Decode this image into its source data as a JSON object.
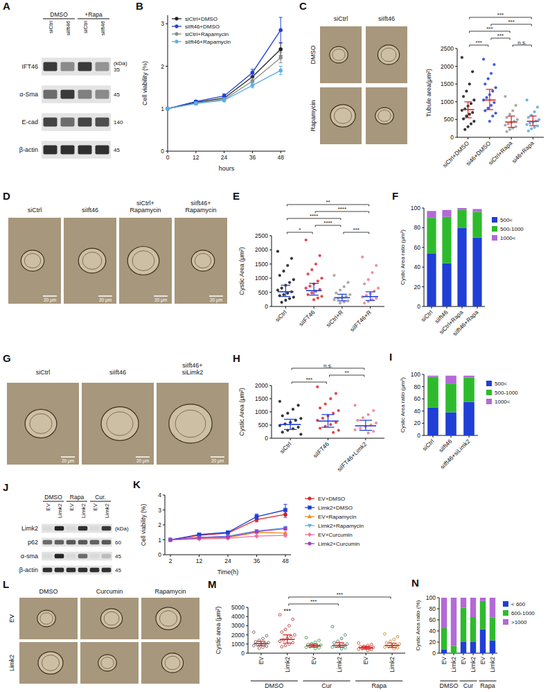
{
  "blots": [
    {
      "panel": "A",
      "groups": [
        {
          "label": "DMSO",
          "span": 2
        },
        {
          "label": "+Rapa",
          "span": 2
        }
      ],
      "lanes": [
        "siCtrl",
        "siIft46",
        "siCtrl",
        "siIft46"
      ],
      "unit_label": "(kDa)",
      "rows": [
        {
          "label": "IFT46",
          "kda": 35,
          "intensity": [
            0.85,
            0.45,
            0.85,
            0.4
          ]
        },
        {
          "label": "α-Sma",
          "kda": 45,
          "intensity": [
            0.6,
            0.85,
            0.5,
            0.45
          ]
        },
        {
          "label": "E-cad",
          "kda": 140,
          "intensity": [
            0.8,
            0.6,
            0.8,
            0.75
          ]
        },
        {
          "label": "β-actin",
          "kda": 45,
          "intensity": [
            0.9,
            0.9,
            0.9,
            0.9
          ]
        }
      ]
    },
    {
      "panel": "J",
      "groups": [
        {
          "label": "DMSO",
          "span": 2
        },
        {
          "label": "Rapa",
          "span": 2
        },
        {
          "label": "Cur.",
          "span": 2
        }
      ],
      "lanes": [
        "EV",
        "Limk2",
        "EV",
        "Limk2",
        "EV",
        "Limk2"
      ],
      "unit_label": "(kDa)",
      "rows": [
        {
          "label": "Limk2",
          "kda": null,
          "intensity": [
            0.05,
            0.95,
            0.05,
            0.9,
            0.05,
            0.85
          ]
        },
        {
          "label": "p62",
          "kda": 60,
          "intensity": [
            0.6,
            0.65,
            0.7,
            0.7,
            0.65,
            0.7
          ]
        },
        {
          "label": "α-sma",
          "kda": 45,
          "intensity": [
            0.05,
            0.95,
            0.05,
            0.6,
            0.05,
            0.2
          ]
        },
        {
          "label": "β-actin",
          "kda": 45,
          "intensity": [
            0.9,
            0.9,
            0.9,
            0.9,
            0.9,
            0.9
          ]
        }
      ]
    }
  ],
  "images": [
    {
      "panel": "C",
      "columns": [
        "siCtrl",
        "siIft46"
      ],
      "rows": [
        "DMSO",
        "Rapamycin"
      ]
    },
    {
      "panel": "D",
      "columns": [
        "siCtrl",
        "siIft46",
        "siCtrl+Rapamycin",
        "siIft46+Rapamycin"
      ],
      "scale_bar": "20 μm"
    },
    {
      "panel": "G",
      "columns": [
        "siCtrl",
        "siIft46",
        "siIft46+siLimk2"
      ],
      "scale_bar": "20 μm"
    },
    {
      "panel": "L",
      "columns": [
        "DMSO",
        "Curcumin",
        "Rapamycin"
      ],
      "rows": [
        "EV",
        "Limk2"
      ]
    }
  ],
  "chart_data": [
    {
      "panel": "B",
      "type": "line",
      "x": [
        0,
        12,
        24,
        36,
        48
      ],
      "xlim": [
        0,
        50
      ],
      "xticks": [
        0,
        12,
        24,
        36,
        48
      ],
      "x_label": "hours",
      "y_label": "Cell viability (%)",
      "ylim": [
        0,
        3.2
      ],
      "yticks": [
        0,
        1,
        2,
        3
      ],
      "legend": "top-left",
      "series": [
        {
          "name": "siCtrl+DMSO",
          "color": "#222222",
          "marker": "circle",
          "values": [
            1,
            1.15,
            1.25,
            1.75,
            2.4
          ],
          "errors": [
            0,
            0.03,
            0.04,
            0.08,
            0.15
          ]
        },
        {
          "name": "siIft46+DMSO",
          "color": "#1f3fd6",
          "marker": "circle",
          "values": [
            1,
            1.17,
            1.3,
            1.85,
            2.85
          ],
          "errors": [
            0,
            0.03,
            0.05,
            0.08,
            0.3
          ]
        },
        {
          "name": "siCtrl+Rapamycin",
          "color": "#8c8c8c",
          "marker": "circle",
          "values": [
            1,
            1.13,
            1.22,
            1.65,
            2.2
          ],
          "errors": [
            0,
            0.03,
            0.04,
            0.07,
            0.12
          ]
        },
        {
          "name": "siIft46+Rapamycin",
          "color": "#5aaee6",
          "marker": "circle",
          "values": [
            1,
            1.12,
            1.2,
            1.55,
            1.9
          ],
          "errors": [
            0,
            0.03,
            0.04,
            0.06,
            0.1
          ]
        }
      ]
    },
    {
      "type": "dot",
      "categories": [
        "siCtrl+DMSO",
        "si46+DMSO",
        "siCtrl+Rapa",
        "si46+Rapa"
      ],
      "colors": [
        "#111111",
        "#1f3fd6",
        "#9a9a9a",
        "#5aa7e0"
      ],
      "marker": "circle",
      "y_label": "Tubule area(μm²)",
      "ylim": [
        0,
        2500
      ],
      "yticks": [
        0,
        500,
        1000,
        1500,
        2000,
        2500
      ],
      "points": [
        [
          2250,
          1850,
          1500,
          1300,
          1150,
          1050,
          950,
          880,
          800,
          760,
          700,
          650,
          600,
          520,
          450,
          380,
          300,
          220
        ],
        [
          2200,
          2050,
          1800,
          1650,
          1500,
          1400,
          1300,
          1200,
          1120,
          1050,
          980,
          900,
          820,
          750,
          680,
          600,
          450
        ],
        [
          1150,
          900,
          750,
          650,
          560,
          500,
          450,
          420,
          380,
          340,
          300,
          260,
          220,
          160
        ],
        [
          1050,
          850,
          720,
          620,
          560,
          500,
          460,
          430,
          400,
          360,
          320,
          280,
          240,
          180
        ]
      ],
      "center": [
        780,
        1050,
        430,
        450
      ],
      "whisker_low": [
        550,
        780,
        280,
        330
      ],
      "whisker_high": [
        1000,
        1350,
        600,
        600
      ],
      "annotations": [
        {
          "from": 0,
          "to": 1,
          "label": "***"
        },
        {
          "from": 2,
          "to": 3,
          "label": "n.s."
        },
        {
          "from": 1,
          "to": 2,
          "label": "***"
        },
        {
          "from": 0,
          "to": 2,
          "label": "***"
        },
        {
          "from": 1,
          "to": 3,
          "label": "***"
        },
        {
          "from": 0,
          "to": 3,
          "label": "***"
        }
      ]
    },
    {
      "panel": "E",
      "type": "dot",
      "categories": [
        "siCtrl",
        "siIFT46",
        "siCtrl+R",
        "siIFT46+R"
      ],
      "colors": [
        "#111111",
        "#e0262b",
        "#9a9a9a",
        "#f07a8a"
      ],
      "marker": "circle",
      "y_label": "Cystic Area (μm²)",
      "ylim": [
        0,
        2500
      ],
      "yticks": [
        0,
        500,
        1000,
        1500,
        2000,
        2500
      ],
      "points": [
        [
          1950,
          1700,
          1450,
          1250,
          1100,
          950,
          850,
          750,
          650,
          580,
          520,
          470,
          420,
          380,
          330,
          280,
          220,
          150
        ],
        [
          2350,
          1800,
          1500,
          1300,
          1150,
          1000,
          900,
          800,
          720,
          650,
          600,
          540,
          480,
          420,
          360,
          300,
          240
        ],
        [
          1100,
          850,
          700,
          580,
          480,
          420,
          360,
          320,
          280,
          240,
          200,
          160,
          120
        ],
        [
          1750,
          1450,
          1200,
          950,
          800,
          650,
          550,
          450,
          400,
          340,
          290,
          240,
          180,
          120
        ]
      ],
      "center": [
        520,
        560,
        310,
        350
      ],
      "whisker_low": [
        350,
        400,
        200,
        210
      ],
      "whisker_high": [
        750,
        820,
        430,
        520
      ],
      "annotations": [
        {
          "from": 0,
          "to": 1,
          "label": "*"
        },
        {
          "from": 1,
          "to": 2,
          "label": "****"
        },
        {
          "from": 2,
          "to": 3,
          "label": "***"
        },
        {
          "from": 0,
          "to": 2,
          "label": "****"
        },
        {
          "from": 1,
          "to": 3,
          "label": "****"
        },
        {
          "from": 0,
          "to": 3,
          "label": "**"
        }
      ]
    },
    {
      "panel": "F",
      "type": "bar",
      "stacked": true,
      "categories": [
        "siCtrl",
        "siIft46",
        "siCtrl+Rapa",
        "siIft46+Rapa"
      ],
      "y_label": "Cystic Area ratio (μm²)",
      "ylim": [
        0,
        100
      ],
      "yticks": [
        0,
        20,
        40,
        60,
        80,
        100
      ],
      "legend": "right",
      "series": [
        {
          "name": "500<",
          "color": "#1f3fd6",
          "values": [
            54,
            44,
            80,
            70
          ]
        },
        {
          "name": "500-1000",
          "color": "#2dbb2d",
          "values": [
            36,
            47,
            18,
            26
          ]
        },
        {
          "name": "1000<",
          "color": "#b36ad6",
          "values": [
            7,
            7,
            2,
            3
          ]
        }
      ]
    },
    {
      "panel": "H",
      "type": "dot",
      "categories": [
        "siCtrl",
        "siIFT46",
        "siIFT46+Limk2"
      ],
      "colors": [
        "#111111",
        "#e0262b",
        "#f07a8a"
      ],
      "marker": "circle",
      "y_label": "Cystic Area (μm²)",
      "ylim": [
        0,
        2000
      ],
      "yticks": [
        0,
        500,
        1000,
        1500,
        2000
      ],
      "points": [
        [
          1400,
          1250,
          1100,
          950,
          850,
          750,
          680,
          600,
          540,
          480,
          420,
          360,
          300,
          230,
          150
        ],
        [
          1950,
          1700,
          1500,
          1300,
          1150,
          1050,
          950,
          850,
          760,
          680,
          600,
          520,
          450,
          380,
          300,
          220
        ],
        [
          1250,
          1050,
          900,
          780,
          680,
          580,
          500,
          440,
          380,
          320,
          260,
          200
        ]
      ],
      "center": [
        520,
        650,
        470
      ],
      "whisker_low": [
        330,
        420,
        300
      ],
      "whisker_high": [
        720,
        900,
        680
      ],
      "annotations": [
        {
          "from": 0,
          "to": 1,
          "label": "***"
        },
        {
          "from": 1,
          "to": 2,
          "label": "**"
        },
        {
          "from": 0,
          "to": 2,
          "label": "n.s."
        }
      ]
    },
    {
      "panel": "I",
      "type": "bar",
      "stacked": true,
      "categories": [
        "siCtrl",
        "siIft46",
        "siIft46+siLimk2"
      ],
      "y_label": "Cystic Area ratio (μm²)",
      "ylim": [
        0,
        100
      ],
      "yticks": [
        0,
        20,
        40,
        60,
        80,
        100
      ],
      "legend": "right",
      "series": [
        {
          "name": "500<",
          "color": "#1f3fd6",
          "values": [
            46,
            38,
            55
          ]
        },
        {
          "name": "500-1000",
          "color": "#2dbb2d",
          "values": [
            50,
            47,
            40
          ]
        },
        {
          "name": "1000<",
          "color": "#b36ad6",
          "values": [
            2,
            13,
            3
          ]
        }
      ]
    },
    {
      "panel": "K",
      "type": "line",
      "categories": [
        "2",
        "12",
        "24",
        "36",
        "48"
      ],
      "x_label": "Time(h)",
      "y_label": "Cell viability (%)",
      "ylim": [
        0,
        4
      ],
      "yticks": [
        0,
        1,
        2,
        3,
        4
      ],
      "legend": "right",
      "series": [
        {
          "name": "EV+DMSO",
          "color": "#e0262b",
          "marker": "circle",
          "values": [
            1,
            1.3,
            1.45,
            2.35,
            2.7
          ],
          "errors": [
            0.02,
            0.05,
            0.05,
            0.15,
            0.2
          ]
        },
        {
          "name": "Limk2+DMSO",
          "color": "#1f3fd6",
          "marker": "square",
          "values": [
            1,
            1.35,
            1.5,
            2.55,
            3.0
          ],
          "errors": [
            0.02,
            0.05,
            0.06,
            0.18,
            0.38
          ]
        },
        {
          "name": "EV+Rapamycin",
          "color": "#f08a1c",
          "marker": "triangle",
          "values": [
            1,
            1.1,
            1.15,
            1.5,
            1.45
          ],
          "errors": [
            0.02,
            0.04,
            0.04,
            0.06,
            0.08
          ]
        },
        {
          "name": "Limk2+Rapamycin",
          "color": "#5ab4e6",
          "marker": "triangle-down",
          "values": [
            1,
            1.15,
            1.25,
            1.6,
            1.8
          ],
          "errors": [
            0.02,
            0.04,
            0.05,
            0.07,
            0.1
          ]
        },
        {
          "name": "EV+Curcumin",
          "color": "#f06fa0",
          "marker": "diamond",
          "values": [
            1,
            1.05,
            1.1,
            1.25,
            1.3
          ],
          "errors": [
            0.02,
            0.03,
            0.04,
            0.05,
            0.07
          ]
        },
        {
          "name": "Limk2+Curcumin",
          "color": "#9b3fc8",
          "marker": "circle",
          "values": [
            1,
            1.15,
            1.2,
            1.55,
            1.75
          ],
          "errors": [
            0.02,
            0.04,
            0.05,
            0.07,
            0.1
          ]
        }
      ]
    },
    {
      "panel": "M",
      "type": "dot",
      "categories": [
        "EV",
        "Limk2",
        "EV",
        "Limk2",
        "EV",
        "Limk2"
      ],
      "groups": [
        {
          "label": "DMSO",
          "span": 2
        },
        {
          "label": "Cur",
          "span": 2
        },
        {
          "label": "Rapa",
          "span": 2
        }
      ],
      "colors": [
        "#555555",
        "#b5261e",
        "#3a8a3a",
        "#2e7d5b",
        "#c0392b",
        "#c77a1a"
      ],
      "marker": "open",
      "y_label": "Cystic area (μm²)",
      "ylim": [
        0,
        5000
      ],
      "yticks": [
        0,
        1000,
        2000,
        3000,
        4000,
        5000
      ],
      "points": [
        [
          2300,
          1900,
          1600,
          1400,
          1250,
          1150,
          1050,
          980,
          900,
          820,
          750,
          650,
          550
        ],
        [
          4200,
          3700,
          3000,
          2600,
          2300,
          2000,
          1800,
          1600,
          1450,
          1300,
          1150,
          1000,
          850,
          700
        ],
        [
          1700,
          1400,
          1200,
          1050,
          950,
          880,
          820,
          760,
          700,
          640,
          580,
          500
        ],
        [
          2900,
          2000,
          1600,
          1300,
          1150,
          1000,
          900,
          820,
          740,
          660,
          580,
          480
        ],
        [
          1100,
          950,
          850,
          760,
          700,
          640,
          590,
          540,
          490,
          440,
          380,
          300
        ],
        [
          2100,
          1800,
          1500,
          1300,
          1150,
          1000,
          900,
          820,
          740,
          660,
          580,
          480
        ]
      ],
      "center": [
        1050,
        1500,
        820,
        860,
        600,
        850
      ],
      "whisker_low": [
        800,
        1100,
        650,
        650,
        450,
        620
      ],
      "whisker_high": [
        1300,
        2000,
        1000,
        1150,
        750,
        1100
      ],
      "annotations": [
        {
          "from": 1,
          "to": 1,
          "label": "***"
        },
        {
          "from": 1,
          "to": 3,
          "label": "***"
        },
        {
          "from": 1,
          "to": 5,
          "label": "***"
        }
      ]
    },
    {
      "panel": "N",
      "type": "bar",
      "stacked": true,
      "categories": [
        "EV",
        "Limk2",
        "EV",
        "Limk2",
        "EV",
        "Limk2"
      ],
      "groups": [
        {
          "label": "DMSO",
          "span": 2
        },
        {
          "label": "Cur",
          "span": 2
        },
        {
          "label": "Rapa",
          "span": 2
        }
      ],
      "y_label": "Cystic Area ratio (%)",
      "ylim": [
        0,
        100
      ],
      "yticks": [
        0,
        20,
        40,
        60,
        80,
        100
      ],
      "legend": "right",
      "series": [
        {
          "name": "< 600",
          "color": "#1f3fd6",
          "values": [
            7,
            0,
            20,
            20,
            43,
            23
          ]
        },
        {
          "name": "600-1000",
          "color": "#2dbb2d",
          "values": [
            38,
            13,
            62,
            45,
            51,
            41
          ]
        },
        {
          "name": ">1000",
          "color": "#b36ad6",
          "values": [
            55,
            87,
            18,
            35,
            6,
            36
          ]
        }
      ]
    }
  ]
}
